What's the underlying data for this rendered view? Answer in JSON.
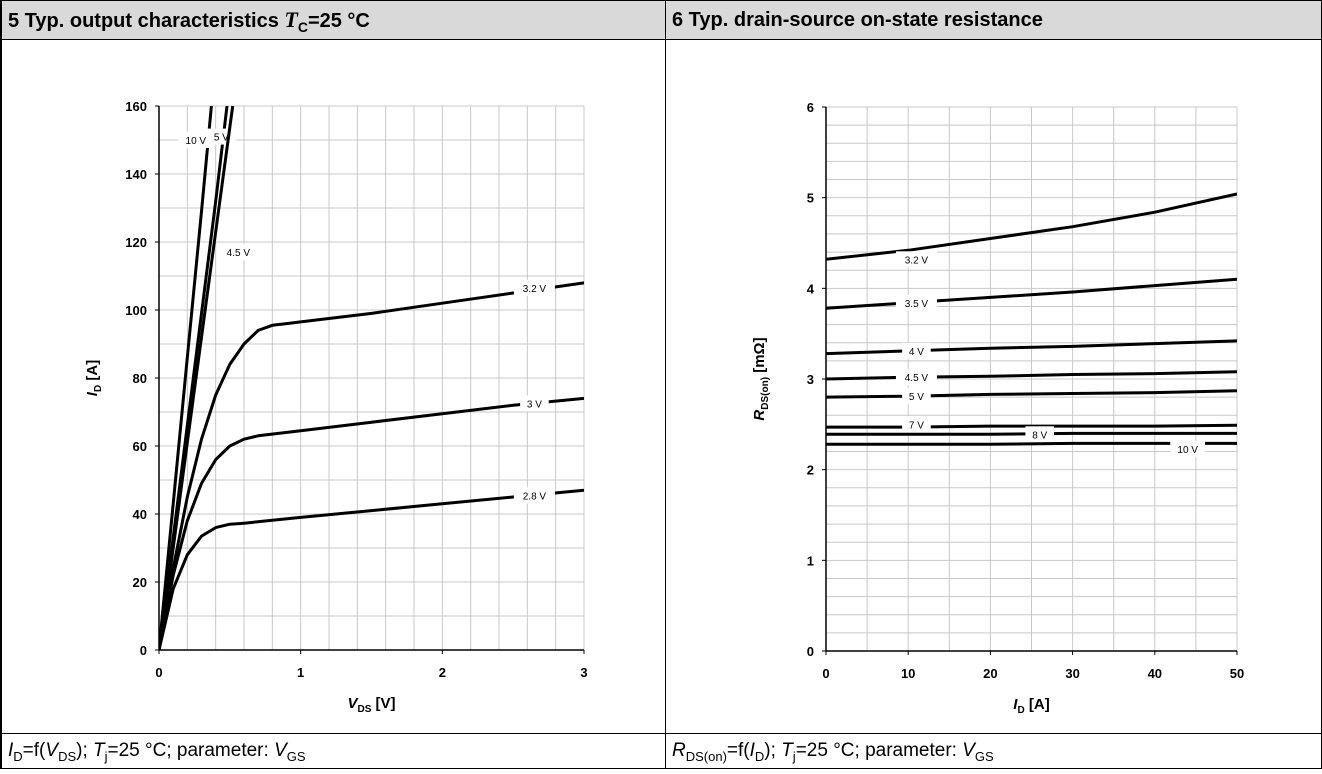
{
  "left_panel": {
    "header_prefix": "5 Typ. output characteristics ",
    "header_T": "T",
    "header_sub": "C",
    "header_suffix": "=25 °C",
    "footer": {
      "p1": "I",
      "p1sub": "D",
      "p2": "=f(",
      "p3": "V",
      "p3sub": "DS",
      "p4": "); ",
      "p5": "T",
      "p5sub": "j",
      "p6": "=25 °C; parameter: ",
      "p7": "V",
      "p7sub": "GS"
    }
  },
  "right_panel": {
    "header": "6 Typ. drain-source on-state resistance",
    "footer": {
      "p1": "R",
      "p1sub": "DS(on)",
      "p2": "=f(",
      "p3": "I",
      "p3sub": "D",
      "p4": "); ",
      "p5": "T",
      "p5sub": "j",
      "p6": "=25 °C; parameter: ",
      "p7": "V",
      "p7sub": "GS"
    }
  },
  "chart_data": [
    {
      "type": "line",
      "xlabel": "V",
      "xlabel_sub": "DS",
      "xlabel_unit": " [V]",
      "ylabel": "I",
      "ylabel_sub": "D",
      "ylabel_unit": " [A]",
      "xlim": [
        0,
        3
      ],
      "ylim": [
        0,
        160
      ],
      "xticks": [
        0,
        1,
        2,
        3
      ],
      "yticks": [
        0,
        20,
        40,
        60,
        80,
        100,
        120,
        140,
        160
      ],
      "grid": true,
      "series": [
        {
          "name": "10 V",
          "x": [
            0,
            0.1,
            0.2,
            0.3,
            0.37
          ],
          "y": [
            0,
            43,
            86,
            129,
            160
          ]
        },
        {
          "name": "5 V",
          "x": [
            0,
            0.1,
            0.2,
            0.3,
            0.4,
            0.48
          ],
          "y": [
            0,
            33,
            66,
            99,
            132,
            160
          ]
        },
        {
          "name": "4.5 V",
          "x": [
            0,
            0.1,
            0.2,
            0.3,
            0.4,
            0.52
          ],
          "y": [
            0,
            30,
            61,
            92,
            123,
            160
          ]
        },
        {
          "name": "3.2 V",
          "x": [
            0,
            0.1,
            0.2,
            0.3,
            0.4,
            0.5,
            0.6,
            0.7,
            0.8,
            0.9,
            1.0,
            1.5,
            2.0,
            2.5,
            3.0
          ],
          "y": [
            0,
            24,
            45,
            62,
            75,
            84,
            90,
            94,
            95.5,
            96,
            96.5,
            99,
            102,
            105,
            108
          ]
        },
        {
          "name": "3 V",
          "x": [
            0,
            0.1,
            0.2,
            0.3,
            0.4,
            0.5,
            0.6,
            0.7,
            1.0,
            1.5,
            2.0,
            2.5,
            3.0
          ],
          "y": [
            0,
            22,
            38,
            49,
            56,
            60,
            62,
            63,
            64.5,
            67,
            69.5,
            72,
            74
          ]
        },
        {
          "name": "2.8 V",
          "x": [
            0,
            0.1,
            0.2,
            0.3,
            0.4,
            0.5,
            0.6,
            1.0,
            1.5,
            2.0,
            2.5,
            3.0
          ],
          "y": [
            0,
            18,
            28,
            33.5,
            36,
            37,
            37.3,
            39,
            41,
            43,
            45,
            47
          ]
        }
      ]
    },
    {
      "type": "line",
      "xlabel": "I",
      "xlabel_sub": "D",
      "xlabel_unit": " [A]",
      "ylabel": "R",
      "ylabel_sub": "DS(on)",
      "ylabel_unit": "  [mΩ]",
      "xlim": [
        0,
        50
      ],
      "ylim": [
        0,
        6
      ],
      "xticks": [
        0,
        10,
        20,
        30,
        40,
        50
      ],
      "yticks": [
        0,
        1,
        2,
        3,
        4,
        5,
        6
      ],
      "grid": true,
      "series": [
        {
          "name": "3.2 V",
          "x": [
            0,
            10,
            20,
            30,
            40,
            50
          ],
          "y": [
            4.32,
            4.42,
            4.55,
            4.68,
            4.84,
            5.04
          ]
        },
        {
          "name": "3.5 V",
          "x": [
            0,
            10,
            20,
            30,
            40,
            50
          ],
          "y": [
            3.78,
            3.84,
            3.9,
            3.96,
            4.03,
            4.1
          ]
        },
        {
          "name": "4 V",
          "x": [
            0,
            10,
            20,
            30,
            40,
            50
          ],
          "y": [
            3.28,
            3.31,
            3.34,
            3.36,
            3.39,
            3.42
          ]
        },
        {
          "name": "4.5 V",
          "x": [
            0,
            10,
            20,
            30,
            40,
            50
          ],
          "y": [
            3.0,
            3.02,
            3.03,
            3.05,
            3.06,
            3.08
          ]
        },
        {
          "name": "5 V",
          "x": [
            0,
            10,
            20,
            30,
            40,
            50
          ],
          "y": [
            2.8,
            2.81,
            2.83,
            2.84,
            2.85,
            2.87
          ]
        },
        {
          "name": "7 V",
          "x": [
            0,
            10,
            20,
            30,
            40,
            50
          ],
          "y": [
            2.47,
            2.47,
            2.48,
            2.48,
            2.48,
            2.49
          ]
        },
        {
          "name": "8 V",
          "x": [
            0,
            10,
            20,
            30,
            40,
            50
          ],
          "y": [
            2.39,
            2.39,
            2.39,
            2.4,
            2.4,
            2.4
          ]
        },
        {
          "name": "10 V",
          "x": [
            0,
            10,
            20,
            30,
            40,
            50
          ],
          "y": [
            2.28,
            2.28,
            2.28,
            2.29,
            2.29,
            2.29
          ]
        }
      ]
    }
  ]
}
